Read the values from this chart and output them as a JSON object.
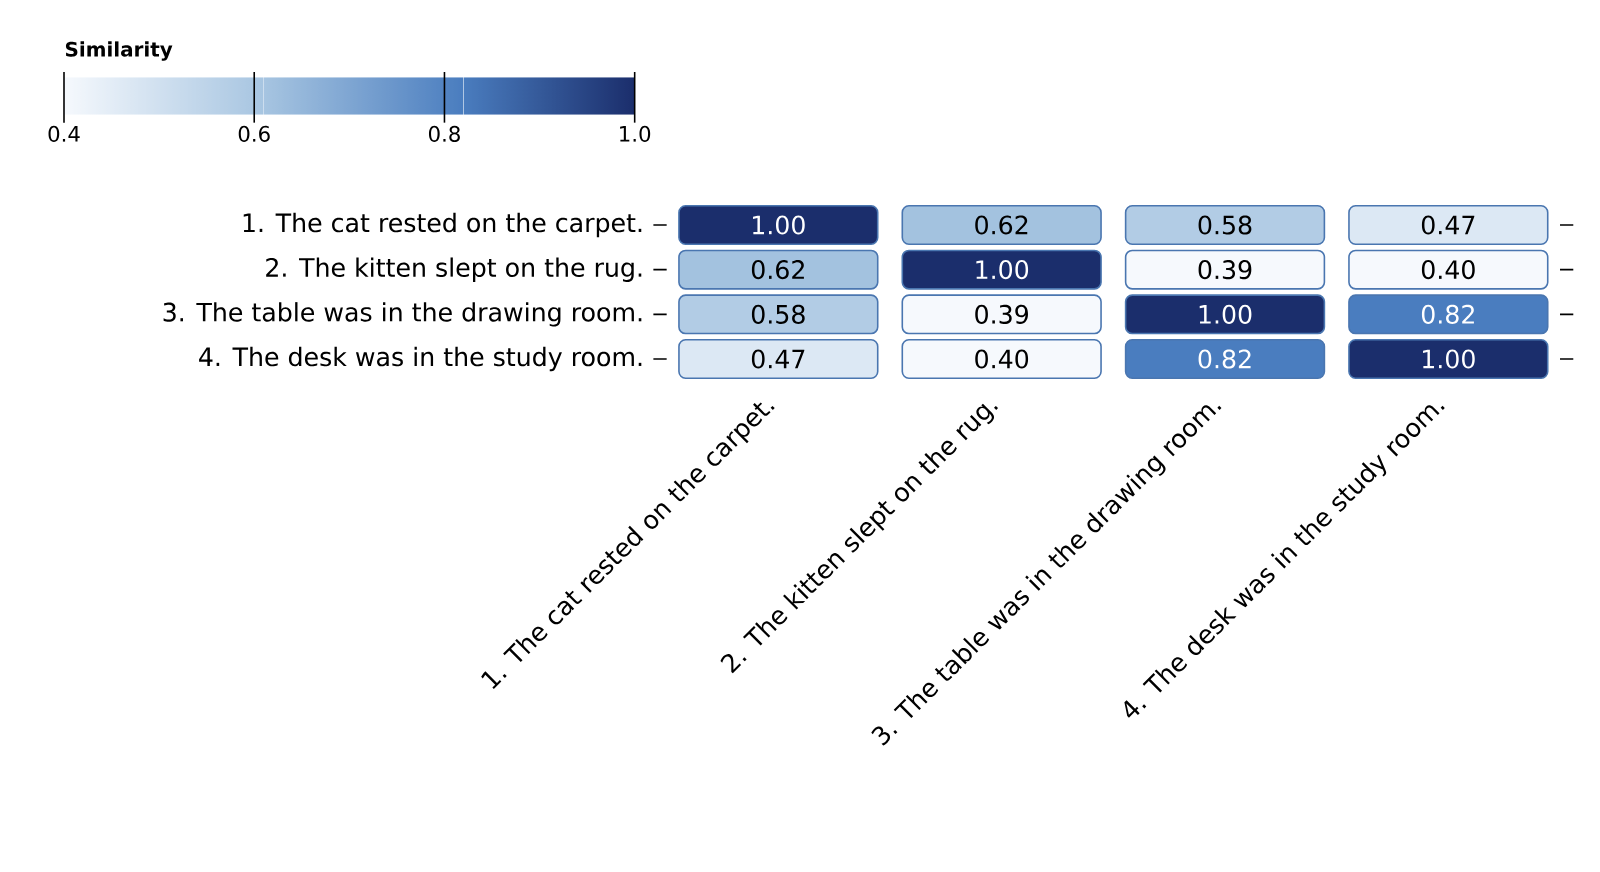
{
  "chart_data": {
    "type": "heatmap",
    "clabel": "Similarity",
    "categories": [
      "1. The cat rested on the carpet.",
      "2. The kitten slept on the rug.",
      "3. The table was in the drawing room.",
      "4. The desk was in the study room."
    ],
    "y_categories": [
      "1. The cat rested on the carpet.",
      "2. The kitten slept on the rug.",
      "3. The table was in the drawing room.",
      "4. The desk was in the study room."
    ],
    "cells": [
      [
        1.0,
        0.62,
        0.58,
        0.47
      ],
      [
        0.62,
        1.0,
        0.39,
        0.4
      ],
      [
        0.58,
        0.39,
        1.0,
        0.82
      ],
      [
        0.47,
        0.4,
        0.82,
        1.0
      ]
    ],
    "cell_labels": [
      [
        "1.00",
        "0.62",
        "0.58",
        "0.47"
      ],
      [
        "0.62",
        "1.00",
        "0.39",
        "0.40"
      ],
      [
        "0.58",
        "0.39",
        "1.00",
        "0.82"
      ],
      [
        "0.47",
        "0.40",
        "0.82",
        "1.00"
      ]
    ],
    "clim": [
      0.4,
      1.0
    ],
    "cticks": [
      {
        "value": 0.4,
        "label": "0.4"
      },
      {
        "value": 0.6,
        "label": "0.6"
      },
      {
        "value": 0.8,
        "label": "0.8"
      },
      {
        "value": 1.0,
        "label": "1.0"
      }
    ]
  }
}
